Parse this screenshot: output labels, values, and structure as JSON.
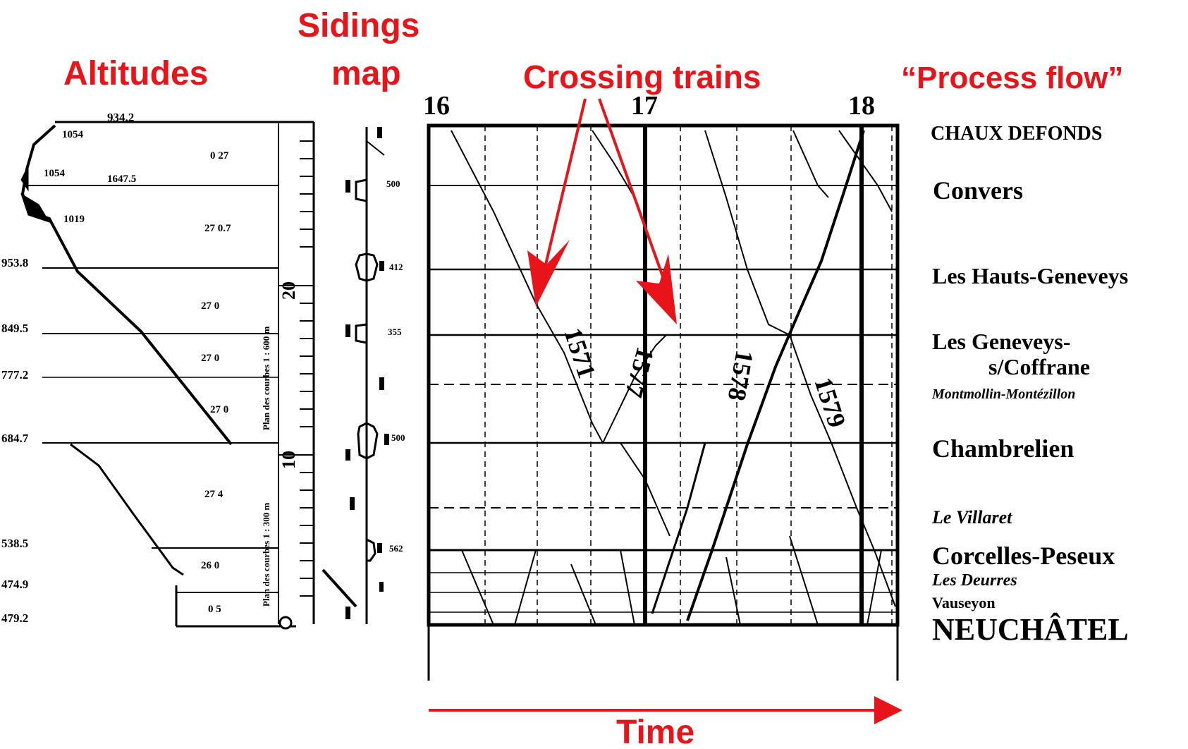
{
  "annotations": {
    "altitudes": "Altitudes",
    "sidings_line1": "Sidings",
    "sidings_line2": "map",
    "crossing_trains": "Crossing trains",
    "process_flow": "“Process flow”",
    "time": "Time"
  },
  "hours": [
    "16",
    "17",
    "18"
  ],
  "stations": [
    {
      "name": "CHAUX DEFONDS",
      "altitude": "934.2"
    },
    {
      "name": "Convers",
      "altitude": ""
    },
    {
      "name": "Les Hauts-Geneveys",
      "altitude": "953.8"
    },
    {
      "name": "Les Geneveys-",
      "altitude": "849.5"
    },
    {
      "name": "s/Coffrane",
      "altitude": ""
    },
    {
      "name": "Montmollin-Montézillon",
      "altitude": "777.2"
    },
    {
      "name": "Chambrelien",
      "altitude": "684.7"
    },
    {
      "name": "Le Villaret",
      "altitude": ""
    },
    {
      "name": "Corcelles-Peseux",
      "altitude": "538.5"
    },
    {
      "name": "Les Deurres",
      "altitude": "474.9"
    },
    {
      "name": "Vauseyon",
      "altitude": ""
    },
    {
      "name": "NEUCHÂTEL",
      "altitude": "479.2"
    }
  ],
  "train_numbers": [
    "1571",
    "1577",
    "1578",
    "1579"
  ],
  "profile_values": {
    "tunnel_length": "1647.5",
    "altitude_a": "1054",
    "altitude_b": "1054",
    "altitude_c": "1019",
    "gradients": [
      "0 27",
      "27 0.7",
      "27 0",
      "27 0",
      "27 0",
      "27 4",
      "26 0",
      "0 5"
    ],
    "scale_text_1": "Plan des courbes 1 : 600 m",
    "scale_text_2": "Plan des courbes 1 : 300 m",
    "scale_marks": [
      "20",
      "10"
    ]
  },
  "siding_values": [
    "500",
    "412",
    "355",
    "500",
    "562"
  ],
  "colors": {
    "annotation_red": "#e8141a",
    "ink": "#000000",
    "background": "#ffffff"
  }
}
